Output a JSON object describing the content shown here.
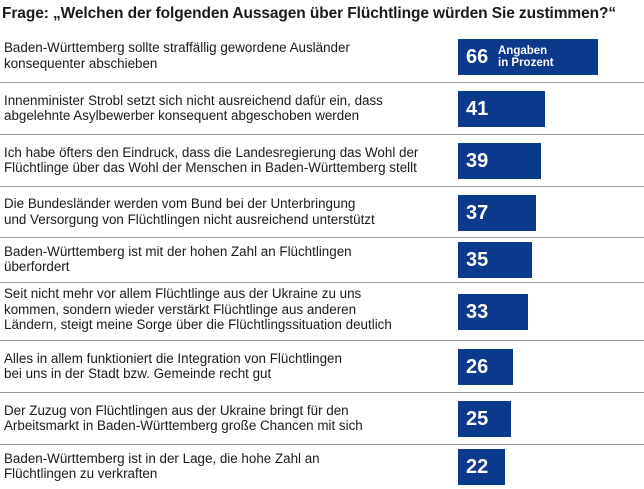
{
  "chart_data": {
    "type": "bar",
    "title": "Frage: „Welchen der folgenden Aussagen über Flüchtlinge würden Sie zustimmen?“",
    "unit_label": [
      "Angaben",
      "in Prozent"
    ],
    "bar_color": "#0b3a8c",
    "xlim": [
      0,
      100
    ],
    "categories": [
      [
        "Baden-Württemberg sollte straffällig gewordene Ausländer",
        "konsequenter abschieben"
      ],
      [
        "Innenminister Strobl setzt sich nicht ausreichend dafür ein, dass",
        "abgelehnte Asylbewerber konsequent abgeschoben werden"
      ],
      [
        "Ich habe öfters den Eindruck, dass die Landesregierung das Wohl der",
        "Flüchtlinge über das Wohl der Menschen in Baden-Württemberg stellt"
      ],
      [
        "Die Bundesländer werden vom Bund bei der Unterbringung",
        "und Versorgung von Flüchtlingen nicht ausreichend unterstützt"
      ],
      [
        "Baden-Württemberg ist mit der hohen Zahl an Flüchtlingen",
        "überfordert"
      ],
      [
        "Seit nicht mehr vor allem Flüchtlinge aus der Ukraine zu uns",
        "kommen, sondern wieder verstärkt Flüchtlinge aus anderen",
        "Ländern, steigt meine Sorge über die Flüchtlingssituation deutlich"
      ],
      [
        "Alles in allem funktioniert die Integration von Flüchtlingen",
        "bei uns in der Stadt bzw. Gemeinde recht gut"
      ],
      [
        "Der Zuzug von Flüchtlingen aus der Ukraine bringt für den",
        "Arbeitsmarkt in Baden-Württemberg große Chancen mit sich"
      ],
      [
        "Baden-Württemberg ist in der Lage, die hohe Zahl an",
        "Flüchtlingen zu verkraften"
      ]
    ],
    "values": [
      66,
      41,
      39,
      37,
      35,
      33,
      26,
      25,
      22
    ]
  }
}
